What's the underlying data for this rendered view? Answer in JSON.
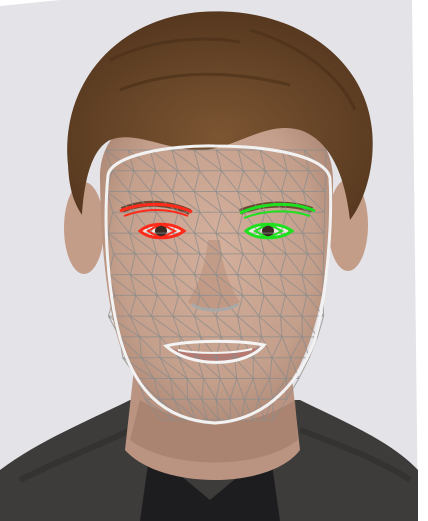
{
  "photo": {
    "subject": "face-portrait",
    "background_color": "#e4e3e7",
    "skin_color": "#c9a491",
    "skin_shadow_color": "#a9826f",
    "hair_color": "#6e4a2c",
    "sweater_color": "#3d3c3a",
    "shirt_color": "#1d1d1f"
  },
  "overlay": {
    "mesh_color": "#8c8c8c",
    "outline_color": "#f2f2f2",
    "left_eye_color": "#ff2a1a",
    "right_eye_color": "#1ee01e",
    "mouth_color": "#f4f4f4"
  }
}
